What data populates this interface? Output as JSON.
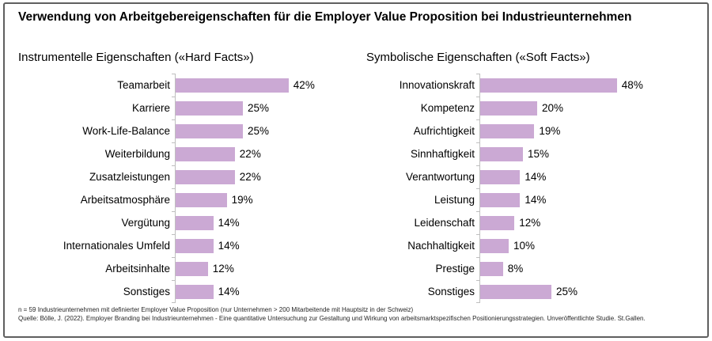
{
  "title": "Verwendung von Arbeitgebereigenschaften für die Employer Value Proposition bei Industrieunternehmen",
  "footnote": {
    "line1": "n = 59 Industrieunternehmen mit definierter Employer Value Proposition (nur Unternehmen > 200 Mitarbeitende mit Hauptsitz in der Schweiz)",
    "line2": "Quelle: Bölle, J. (2022). Employer Branding bei Industrieunternehmen - Eine quantitative Untersuchung zur Gestaltung und Wirkung von arbeitsmarktspezifischen Positionierungsstrategien. Unveröffentlichte Studie. St.Gallen."
  },
  "colors": {
    "bar": "#CBA9D4",
    "axis": "#BFBFBF",
    "frame_border": "#5F5F5F"
  },
  "chart_data": [
    {
      "type": "bar",
      "orientation": "horizontal",
      "title": "Instrumentelle Eigenschaften («Hard Facts»)",
      "categories": [
        "Teamarbeit",
        "Karriere",
        "Work-Life-Balance",
        "Weiterbildung",
        "Zusatzleistungen",
        "Arbeitsatmosphäre",
        "Vergütung",
        "Internationales Umfeld",
        "Arbeitsinhalte",
        "Sonstiges"
      ],
      "values": [
        42,
        25,
        25,
        22,
        22,
        19,
        14,
        14,
        12,
        14
      ],
      "unit": "%",
      "xlabel": "",
      "ylabel": "",
      "xlim": [
        0,
        45
      ],
      "grid": false,
      "data_labels": true,
      "legend": false
    },
    {
      "type": "bar",
      "orientation": "horizontal",
      "title": "Symbolische Eigenschaften («Soft Facts»)",
      "categories": [
        "Innovationskraft",
        "Kompetenz",
        "Aufrichtigkeit",
        "Sinnhaftigkeit",
        "Verantwortung",
        "Leistung",
        "Leidenschaft",
        "Nachhaltigkeit",
        "Prestige",
        "Sonstiges"
      ],
      "values": [
        48,
        20,
        19,
        15,
        14,
        14,
        12,
        10,
        8,
        25
      ],
      "unit": "%",
      "xlabel": "",
      "ylabel": "",
      "xlim": [
        0,
        50
      ],
      "grid": false,
      "data_labels": true,
      "legend": false
    }
  ]
}
